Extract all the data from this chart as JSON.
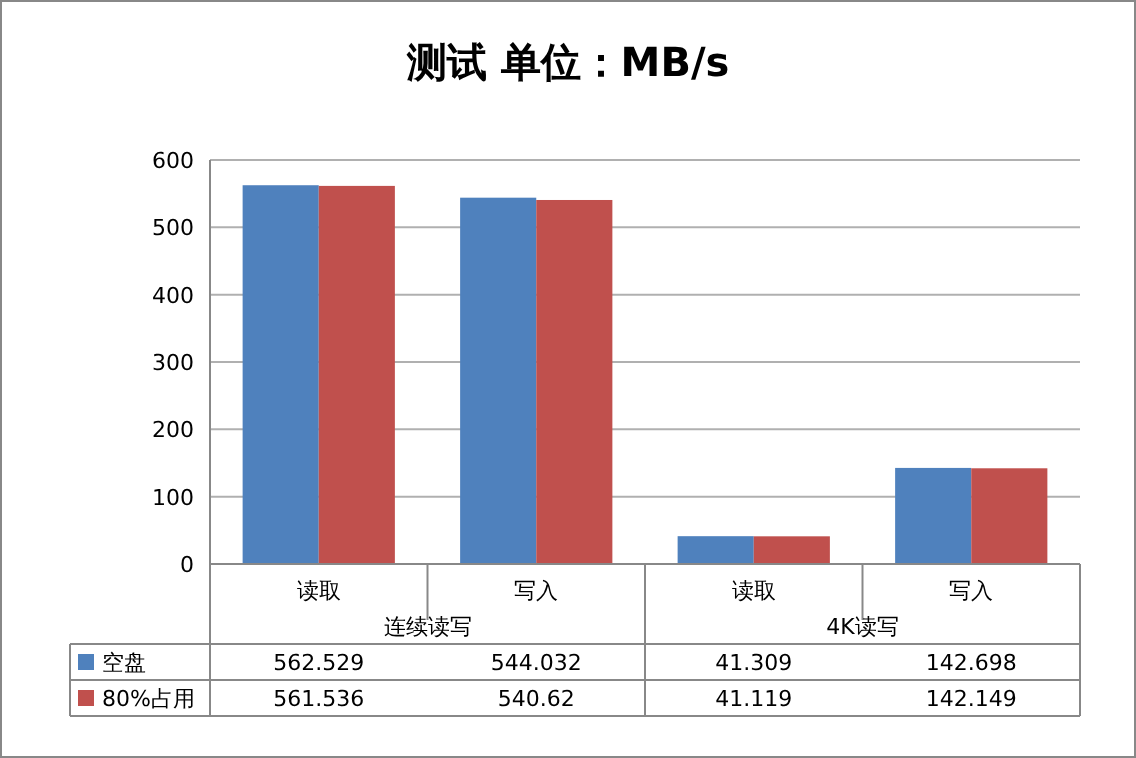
{
  "chart_data": {
    "type": "bar",
    "title": "测试 单位：MB/s",
    "categories": [
      "读取",
      "写入",
      "读取",
      "写入"
    ],
    "annotations": [
      "连续读写",
      "4K读写"
    ],
    "series": [
      {
        "name": "空盘",
        "color": "#4f81bd",
        "values": [
          562.529,
          544.032,
          41.309,
          142.698
        ]
      },
      {
        "name": "80%占用",
        "color": "#c0504d",
        "values": [
          561.536,
          540.62,
          41.119,
          142.149
        ]
      }
    ],
    "ylim": [
      0,
      600
    ],
    "yticks": [
      0,
      100,
      200,
      300,
      400,
      500,
      600
    ],
    "grid": "y",
    "legend": "bottom left",
    "data_labels": true
  }
}
